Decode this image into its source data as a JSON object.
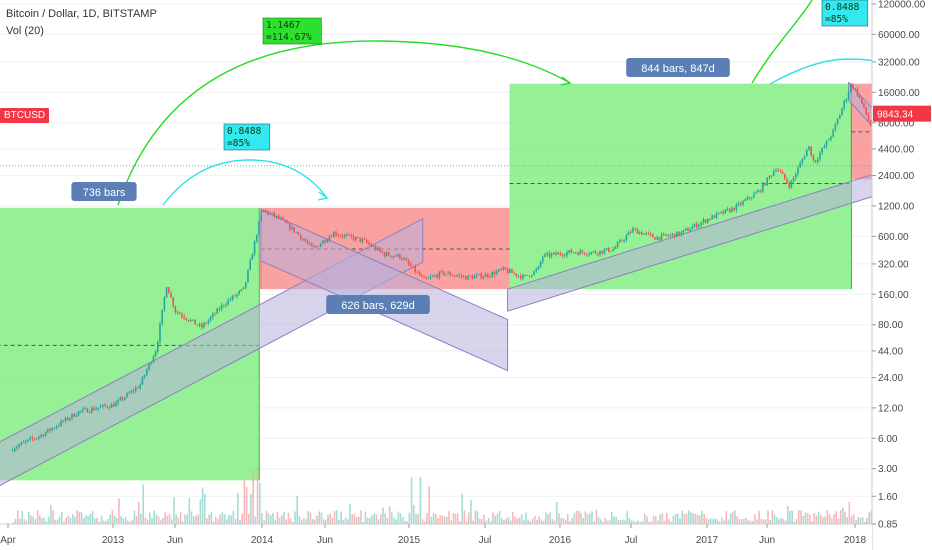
{
  "header": {
    "title": "Bitcoin / Dollar, 1D, BITSTAMP",
    "indicator": "Vol (20)",
    "ticker": "BTCUSD"
  },
  "colors": {
    "green_zone": "#7cec7c",
    "red_zone": "#f98a8a",
    "channel_fill": "#b8b0dc",
    "channel_line": "#8c7fc4",
    "arc_green": "#22dd22",
    "arc_cyan": "#33e0e8",
    "callout_blue": "#5b7fb5",
    "candle_up": "#26a69a",
    "candle_down": "#ef5350",
    "price_tag": "#f23645"
  },
  "chart_data": {
    "type": "candlestick",
    "y_scale": "log",
    "ylim": [
      0.85,
      120000
    ],
    "y_ticks": [
      "120000.00",
      "60000.00",
      "32000.00",
      "16000.00",
      "8000.00",
      "4400.00",
      "2400.00",
      "1200.00",
      "600.00",
      "320.00",
      "160.00",
      "80.00",
      "44.00",
      "24.00",
      "12.00",
      "6.00",
      "3.00",
      "1.60",
      "0.85"
    ],
    "x_ticks": [
      "Apr",
      "2013",
      "Jun",
      "2014",
      "Jun",
      "2015",
      "Jul",
      "2016",
      "Jul",
      "2017",
      "Jun",
      "2018"
    ],
    "price_series": {
      "x": [
        "2012-03-20",
        "2012-06-01",
        "2012-09-01",
        "2012-12-01",
        "2013-02-01",
        "2013-03-15",
        "2013-04-09",
        "2013-05-01",
        "2013-07-05",
        "2013-09-01",
        "2013-10-20",
        "2013-11-10",
        "2013-12-04",
        "2014-01-15",
        "2014-03-01",
        "2014-04-10",
        "2014-06-01",
        "2014-08-15",
        "2014-10-05",
        "2014-11-15",
        "2015-01-14",
        "2015-03-01",
        "2015-05-01",
        "2015-06-15",
        "2015-08-01",
        "2015-09-20",
        "2015-10-25",
        "2015-11-05",
        "2016-01-15",
        "2016-03-15",
        "2016-05-01",
        "2016-06-18",
        "2016-08-15",
        "2016-10-15",
        "2016-12-25",
        "2017-03-01",
        "2017-05-01",
        "2017-06-12",
        "2017-07-16",
        "2017-09-01",
        "2017-09-15",
        "2017-11-01",
        "2017-12-17",
        "2018-01-05",
        "2018-02-06",
        "2018-02-20"
      ],
      "y": [
        4.8,
        6.5,
        11,
        13,
        20,
        47,
        200,
        110,
        75,
        130,
        180,
        420,
        1100,
        900,
        650,
        450,
        650,
        540,
        400,
        380,
        220,
        260,
        235,
        245,
        280,
        235,
        280,
        380,
        420,
        415,
        450,
        700,
        580,
        640,
        900,
        1150,
        1700,
        2900,
        1900,
        4700,
        3200,
        6500,
        19500,
        14500,
        7000,
        9843.34
      ]
    },
    "last_price": "9843.34",
    "annotations": [
      {
        "kind": "callout",
        "text": "736 bars"
      },
      {
        "kind": "callout",
        "text": "626 bars, 629d"
      },
      {
        "kind": "callout",
        "text": "844 bars, 847d"
      },
      {
        "kind": "projection",
        "line1": "1.1467",
        "line2": "=114.67%"
      },
      {
        "kind": "projection",
        "line1": "0.8488",
        "line2": "=85%"
      },
      {
        "kind": "projection",
        "line1": "0.8488",
        "line2": "=85%"
      }
    ],
    "horizontal_levels": [
      3000
    ],
    "zones": [
      {
        "kind": "date_range_up",
        "x": [
          "2011-12-01",
          "2013-11-27"
        ],
        "y": [
          2.3,
          1150
        ]
      },
      {
        "kind": "date_range_down",
        "x": [
          "2013-12-01",
          "2015-08-15"
        ],
        "y": [
          180,
          1150
        ]
      },
      {
        "kind": "date_range_up",
        "x": [
          "2015-08-15",
          "2017-12-17"
        ],
        "y": [
          180,
          19500
        ]
      },
      {
        "kind": "date_range_down",
        "x": [
          "2017-12-17",
          "2018-02-28"
        ],
        "y": [
          2200,
          19500
        ]
      }
    ],
    "channels": [
      {
        "p1": [
          "2012-01-01",
          4.4
        ],
        "p2": [
          "2015-01-10",
          900
        ],
        "width_ratio": 2.7
      },
      {
        "p1": [
          "2013-12-01",
          1100
        ],
        "p2": [
          "2015-08-10",
          90
        ],
        "width_ratio": 3.2
      },
      {
        "p1": [
          "2015-08-10",
          180
        ],
        "p2": [
          "2018-02-28",
          2600
        ],
        "width_ratio": 1.65
      },
      {
        "p1": [
          "2017-12-10",
          20000
        ],
        "p2": [
          "2018-02-28",
          9000
        ],
        "width_ratio": 1.5
      }
    ],
    "dashed_midlines": [
      {
        "x": [
          "2011-12-01",
          "2013-11-27"
        ],
        "y": 50
      },
      {
        "x": [
          "2013-12-01",
          "2015-08-15"
        ],
        "y": 450
      },
      {
        "x": [
          "2015-08-15",
          "2017-12-17"
        ],
        "y": 2000
      },
      {
        "x": [
          "2017-12-17",
          "2018-02-28"
        ],
        "y": 6500
      }
    ],
    "grid": true,
    "legend": "none"
  }
}
